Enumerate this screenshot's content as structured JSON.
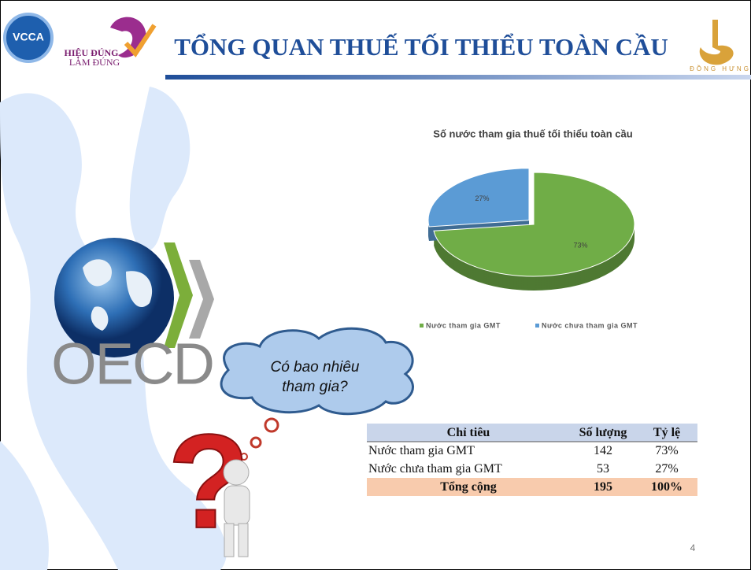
{
  "header": {
    "logo_left": "VCCA",
    "logo_mid_1": "HIỆU ĐÚNG",
    "logo_mid_2": "LÀM ĐÚNG",
    "title": "TỔNG QUAN THUẾ TỐI THIỂU TOÀN CẦU",
    "logo_right": "ĐỒNG HƯNG"
  },
  "chart_data": {
    "type": "pie",
    "title": "Số nước tham gia thuế tối thiểu toàn cầu",
    "series": [
      {
        "name": "Nước tham gia GMT",
        "color": "#70ad47"
      },
      {
        "name": "Nước chưa tham gia GMT",
        "color": "#5b9bd5"
      }
    ],
    "values": [
      73,
      27
    ],
    "value_labels": [
      "73%",
      "27%"
    ],
    "legend": "bottom"
  },
  "illustration": {
    "logo": "OECD",
    "bubble_1": "Có bao nhiêu",
    "bubble_2": "tham gia?"
  },
  "table": {
    "header": [
      "Chỉ tiêu",
      "Số lượng",
      "Tỷ lệ"
    ],
    "rows": [
      [
        "Nước tham gia GMT",
        142,
        "73%"
      ],
      [
        "Nước chưa tham gia GMT",
        53,
        "27%"
      ]
    ],
    "total": [
      "Tổng cộng",
      195,
      "100%"
    ]
  },
  "page_number": 4
}
